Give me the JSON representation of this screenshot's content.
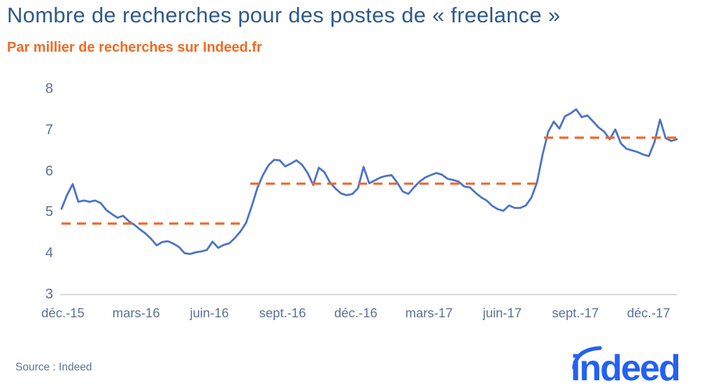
{
  "header": {
    "title": "Nombre de recherches pour des postes de « freelance »",
    "subtitle": "Par millier de recherches sur Indeed.fr"
  },
  "footer": {
    "source": "Source : Indeed",
    "logo_text": "indeed"
  },
  "colors": {
    "title": "#2e5a8c",
    "subtitle": "#f26a21",
    "series_line": "#4a73c6",
    "trend_dash": "#f1662a",
    "axis_text": "#5a7199",
    "axis_line": "#c9c9c9",
    "logo_blue": "#2461f2",
    "background": "#ffffff"
  },
  "chart_data": {
    "type": "line",
    "title": "Nombre de recherches pour des postes de « freelance »",
    "subtitle": "Par millier de recherches sur Indeed.fr",
    "xlabel": "",
    "ylabel": "",
    "grid": false,
    "legend": "none",
    "y_range": [
      3,
      8
    ],
    "y_ticks": [
      8,
      7,
      6,
      5,
      4,
      3
    ],
    "x_ticks": [
      {
        "label": "déc.-15",
        "pos": 0.25
      },
      {
        "label": "mars-16",
        "pos": 13.34
      },
      {
        "label": "juin-16",
        "pos": 26.43
      },
      {
        "label": "sept.-16",
        "pos": 39.51
      },
      {
        "label": "déc.-16",
        "pos": 52.6
      },
      {
        "label": "mars-17",
        "pos": 65.69
      },
      {
        "label": "juin-17",
        "pos": 78.78
      },
      {
        "label": "sept.-17",
        "pos": 91.86
      },
      {
        "label": "déc.-17",
        "pos": 104.95
      }
    ],
    "series": [
      {
        "color": "#4a73c6",
        "values": [
          5.08,
          5.42,
          5.68,
          5.25,
          5.28,
          5.25,
          5.28,
          5.22,
          5.05,
          4.95,
          4.86,
          4.91,
          4.78,
          4.69,
          4.58,
          4.48,
          4.35,
          4.19,
          4.27,
          4.29,
          4.23,
          4.15,
          4.0,
          3.98,
          4.02,
          4.04,
          4.08,
          4.28,
          4.13,
          4.2,
          4.24,
          4.37,
          4.53,
          4.74,
          5.14,
          5.58,
          5.9,
          6.14,
          6.27,
          6.26,
          6.11,
          6.18,
          6.26,
          6.15,
          5.95,
          5.66,
          6.08,
          5.97,
          5.72,
          5.57,
          5.45,
          5.41,
          5.44,
          5.58,
          6.1,
          5.7,
          5.77,
          5.84,
          5.88,
          5.9,
          5.72,
          5.5,
          5.44,
          5.6,
          5.74,
          5.84,
          5.9,
          5.95,
          5.91,
          5.81,
          5.78,
          5.74,
          5.62,
          5.6,
          5.47,
          5.36,
          5.28,
          5.15,
          5.07,
          5.03,
          5.16,
          5.1,
          5.1,
          5.16,
          5.35,
          5.72,
          6.4,
          6.95,
          7.2,
          7.03,
          7.33,
          7.4,
          7.5,
          7.31,
          7.35,
          7.21,
          7.06,
          6.96,
          6.77,
          7.01,
          6.67,
          6.54,
          6.5,
          6.46,
          6.4,
          6.36,
          6.7,
          7.25,
          6.8,
          6.73,
          6.77
        ]
      }
    ],
    "trend_segments": [
      {
        "start_index": 0,
        "end_index": 32.5,
        "value": 4.72
      },
      {
        "start_index": 33.75,
        "end_index": 85.25,
        "value": 5.69
      },
      {
        "start_index": 86.25,
        "end_index": 110,
        "value": 6.81
      }
    ],
    "trend_color": "#f1662a"
  }
}
